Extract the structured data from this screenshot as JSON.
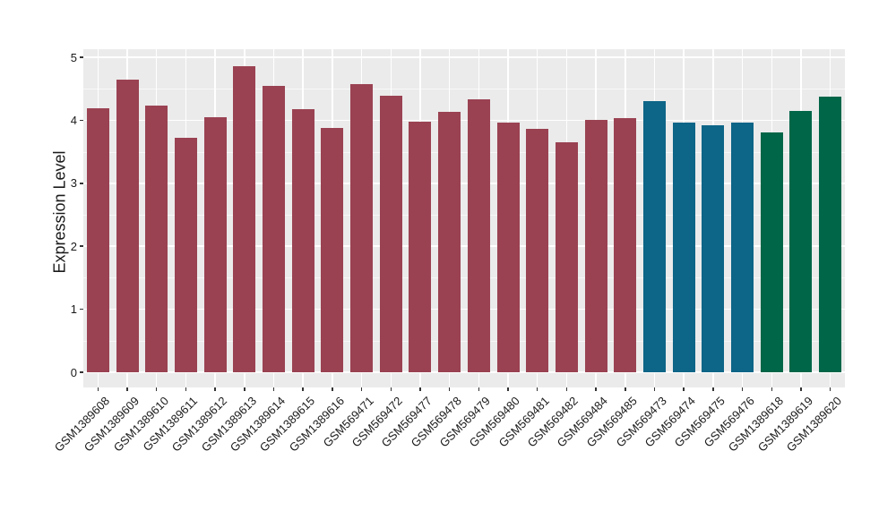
{
  "chart_data": {
    "type": "bar",
    "title": "",
    "xlabel": "",
    "ylabel": "Expression Level",
    "ylim": [
      0,
      5
    ],
    "yticks": [
      0,
      1,
      2,
      3,
      4,
      5
    ],
    "ytick_labels": [
      "0",
      "1",
      "2",
      "3",
      "4",
      "5"
    ],
    "grid": "ggplot gray panel, white major+minor horizontal gridlines, white vertical gridlines at category centers",
    "legend_position": "none",
    "categories": [
      "GSM1389608",
      "GSM1389609",
      "GSM1389610",
      "GSM1389611",
      "GSM1389612",
      "GSM1389613",
      "GSM1389614",
      "GSM1389615",
      "GSM1389616",
      "GSM569471",
      "GSM569472",
      "GSM569477",
      "GSM569478",
      "GSM569479",
      "GSM569480",
      "GSM569481",
      "GSM569482",
      "GSM569484",
      "GSM569485",
      "GSM569473",
      "GSM569474",
      "GSM569475",
      "GSM569476",
      "GSM1389618",
      "GSM1389619",
      "GSM1389620"
    ],
    "values": [
      4.19,
      4.65,
      4.24,
      3.72,
      4.05,
      4.86,
      4.54,
      4.17,
      3.88,
      4.58,
      4.39,
      3.98,
      4.14,
      4.33,
      3.96,
      3.87,
      3.65,
      4.01,
      4.03,
      4.3,
      3.96,
      3.92,
      3.96,
      3.8,
      4.15,
      4.37
    ],
    "bar_colors": [
      "#9A4252",
      "#9A4252",
      "#9A4252",
      "#9A4252",
      "#9A4252",
      "#9A4252",
      "#9A4252",
      "#9A4252",
      "#9A4252",
      "#9A4252",
      "#9A4252",
      "#9A4252",
      "#9A4252",
      "#9A4252",
      "#9A4252",
      "#9A4252",
      "#9A4252",
      "#9A4252",
      "#9A4252",
      "#0D6587",
      "#0D6587",
      "#0D6587",
      "#0D6587",
      "#006648",
      "#006648",
      "#006648"
    ]
  },
  "colors": {
    "maroon_group": "#9A4252",
    "teal_group": "#0D6587",
    "green_group": "#006648",
    "panel_background": "#EBEBEB",
    "grid_line": "#FFFFFF",
    "axis_text": "#1A1A1A",
    "tick_mark": "#333333"
  }
}
